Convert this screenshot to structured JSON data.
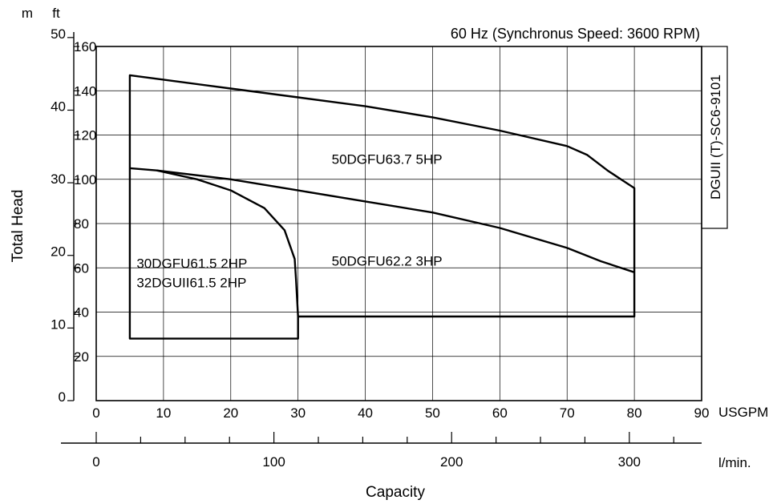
{
  "chart_data": {
    "type": "line",
    "title": "60 Hz (Synchronus Speed: 3600 RPM)",
    "chart_code": "DGUII (T)-SC6-9101",
    "xlabel": "Capacity",
    "ylabel": "Total Head",
    "x_units": {
      "primary": "USGPM",
      "secondary": "l/min."
    },
    "y_units": {
      "left": "m",
      "inner": "ft"
    },
    "xlim_usgpm": [
      0,
      90
    ],
    "ylim_ft": [
      0,
      160
    ],
    "grid": true,
    "x_ticks_usgpm": [
      "0",
      "10",
      "20",
      "30",
      "40",
      "50",
      "60",
      "70",
      "80",
      "90"
    ],
    "x_ticks_lmin": [
      "0",
      "100",
      "200",
      "300"
    ],
    "y_ticks_ft": [
      "20",
      "40",
      "60",
      "80",
      "100",
      "120",
      "140",
      "160"
    ],
    "y_ticks_m": [
      "0",
      "10",
      "20",
      "30",
      "40",
      "50"
    ],
    "regions": [
      {
        "labels": [
          "50DGFU63.7 5HP"
        ],
        "label_at": [
          35,
          107
        ],
        "boundary": [
          [
            5,
            147
          ],
          [
            10,
            145
          ],
          [
            20,
            141
          ],
          [
            30,
            137
          ],
          [
            40,
            133
          ],
          [
            50,
            128
          ],
          [
            60,
            122
          ],
          [
            70,
            115
          ],
          [
            73,
            111
          ],
          [
            76,
            104
          ],
          [
            78,
            100
          ],
          [
            80,
            96
          ],
          [
            80,
            105
          ]
        ]
      },
      {
        "labels": [
          "50DGFU62.2 3HP"
        ],
        "label_at": [
          35,
          61
        ],
        "boundary": [
          [
            9,
            104
          ],
          [
            20,
            100
          ],
          [
            30,
            95
          ],
          [
            40,
            90
          ],
          [
            50,
            85
          ],
          [
            60,
            78
          ],
          [
            70,
            69
          ],
          [
            75,
            63
          ],
          [
            80,
            58
          ],
          [
            80,
            38
          ],
          [
            30,
            38
          ]
        ]
      },
      {
        "labels": [
          "30DGFU61.5 2HP",
          "32DGUII61.5 2HP"
        ],
        "label_at": [
          6,
          60
        ],
        "boundary": [
          [
            5,
            105
          ],
          [
            10,
            102
          ],
          [
            15,
            98
          ],
          [
            20,
            92
          ],
          [
            25,
            81
          ],
          [
            28,
            70
          ],
          [
            29.5,
            58
          ],
          [
            30,
            38
          ],
          [
            30,
            28
          ],
          [
            5,
            28
          ]
        ]
      }
    ],
    "envelope": [
      [
        5,
        147
      ],
      [
        10,
        145
      ],
      [
        20,
        141
      ],
      [
        30,
        137
      ],
      [
        40,
        133
      ],
      [
        50,
        128
      ],
      [
        60,
        122
      ],
      [
        70,
        115
      ],
      [
        73,
        111
      ],
      [
        76,
        104
      ],
      [
        78,
        100
      ],
      [
        80,
        96
      ],
      [
        80,
        38
      ],
      [
        30,
        38
      ],
      [
        30,
        28
      ],
      [
        5,
        28
      ]
    ],
    "dividers": [
      [
        [
          5,
          105
        ],
        [
          9,
          104
        ],
        [
          20,
          100
        ],
        [
          30,
          95
        ],
        [
          40,
          90
        ],
        [
          50,
          85
        ],
        [
          60,
          78
        ],
        [
          70,
          69
        ],
        [
          75,
          63
        ],
        [
          80,
          58
        ]
      ],
      [
        [
          9,
          104
        ],
        [
          15,
          100
        ],
        [
          20,
          95
        ],
        [
          25,
          87
        ],
        [
          28,
          77
        ],
        [
          29.5,
          64
        ],
        [
          29.7,
          55
        ],
        [
          30,
          38
        ]
      ]
    ]
  }
}
